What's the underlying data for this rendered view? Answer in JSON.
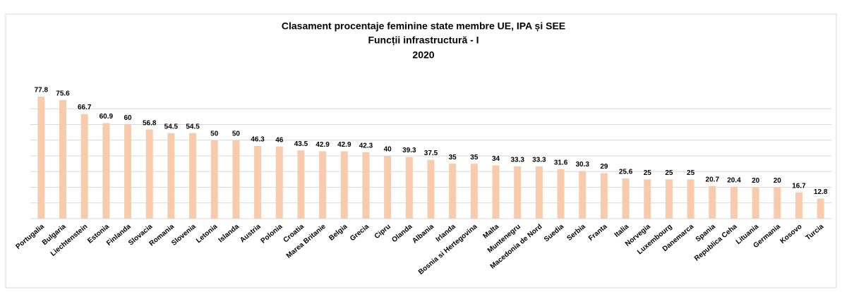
{
  "chart_data": {
    "type": "bar",
    "title": "Clasament procentaje feminine state membre UE, IPA și SEE",
    "subtitle": "Funcții infrastructură - I",
    "year": "2020",
    "categories": [
      "Portugalia",
      "Bulgaria",
      "Liechtenstein",
      "Estonia",
      "Finlanda",
      "Slovacia",
      "Romania",
      "Slovenia",
      "Letonia",
      "Islanda",
      "Austria",
      "Polonia",
      "Croatia",
      "Marea Britanie",
      "Belgia",
      "Grecia",
      "Cipru",
      "Olanda",
      "Albania",
      "Irlanda",
      "Bosnia si Hertegovina",
      "Malta",
      "Muntenegru",
      "Macedonia de Nord",
      "Suedia",
      "Serbia",
      "Franta",
      "Italia",
      "Norvegia",
      "Luxembourg",
      "Danemarca",
      "Spania",
      "Republica Ceha",
      "Lituania",
      "Germania",
      "Kosovo",
      "Turcia"
    ],
    "values": [
      77.8,
      75.6,
      66.7,
      60.9,
      60,
      56.8,
      54.5,
      54.5,
      50,
      50,
      46.3,
      46,
      43.5,
      42.9,
      42.9,
      42.3,
      40,
      39.3,
      37.5,
      35,
      35,
      34,
      33.3,
      33.3,
      31.6,
      30.3,
      29,
      25.6,
      25,
      25,
      25,
      20.7,
      20.4,
      20,
      20,
      16.7,
      12.8
    ],
    "color": "#f8cbad",
    "ylim": [
      0,
      80
    ],
    "yticks": [
      0,
      10,
      20,
      30,
      40,
      50,
      60,
      70
    ],
    "grid": true
  }
}
